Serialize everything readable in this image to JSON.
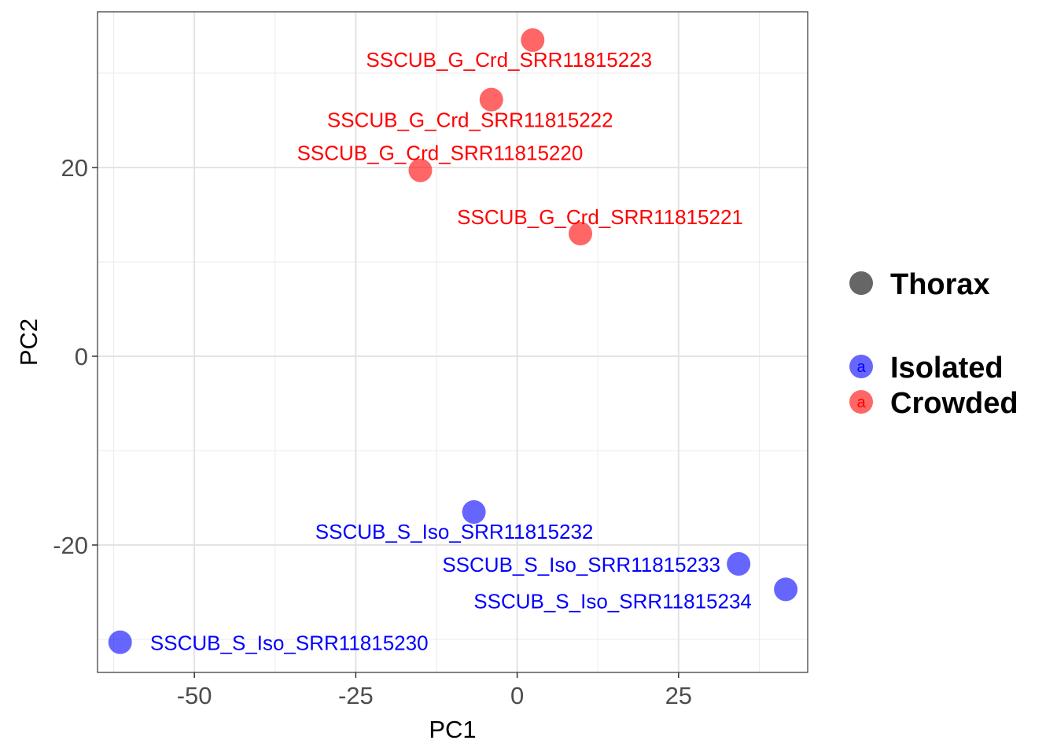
{
  "chart_data": {
    "type": "scatter",
    "title": "",
    "xlabel": "PC1",
    "ylabel": "PC2",
    "xlim": [
      -65,
      45
    ],
    "ylim": [
      -33.5,
      36.5
    ],
    "x_ticks": [
      -50,
      -25,
      0,
      25
    ],
    "y_ticks": [
      -20,
      0,
      20
    ],
    "x_tick_labels": [
      "-50",
      "-25",
      "0",
      "25"
    ],
    "y_tick_labels": [
      "-20",
      "0",
      "20"
    ],
    "grid": true,
    "legend_position": "right",
    "legend": {
      "shape_entries": [
        {
          "label": "Thorax",
          "color": "#666666"
        }
      ],
      "color_entries": [
        {
          "label": "Isolated",
          "color": "#0000ff",
          "key_text": "a"
        },
        {
          "label": "Crowded",
          "color": "#ff0000",
          "key_text": "a"
        }
      ]
    },
    "series": [
      {
        "name": "Isolated",
        "color": "#0000ff",
        "points": [
          {
            "label": "SSCUB_S_Iso_SRR11815230",
            "x": -61.5,
            "y": -30.3
          },
          {
            "label": "SSCUB_S_Iso_SRR11815232",
            "x": -6.7,
            "y": -16.5
          },
          {
            "label": "SSCUB_S_Iso_SRR11815233",
            "x": 34.3,
            "y": -22.0
          },
          {
            "label": "SSCUB_S_Iso_SRR11815234",
            "x": 41.6,
            "y": -24.7
          }
        ]
      },
      {
        "name": "Crowded",
        "color": "#ff0000",
        "points": [
          {
            "label": "SSCUB_G_Crd_SRR11815223",
            "x": 2.4,
            "y": 33.5
          },
          {
            "label": "SSCUB_G_Crd_SRR11815222",
            "x": -4.0,
            "y": 27.2
          },
          {
            "label": "SSCUB_G_Crd_SRR11815220",
            "x": -15.0,
            "y": 19.7
          },
          {
            "label": "SSCUB_G_Crd_SRR11815221",
            "x": 9.8,
            "y": 13.0
          }
        ]
      }
    ]
  }
}
